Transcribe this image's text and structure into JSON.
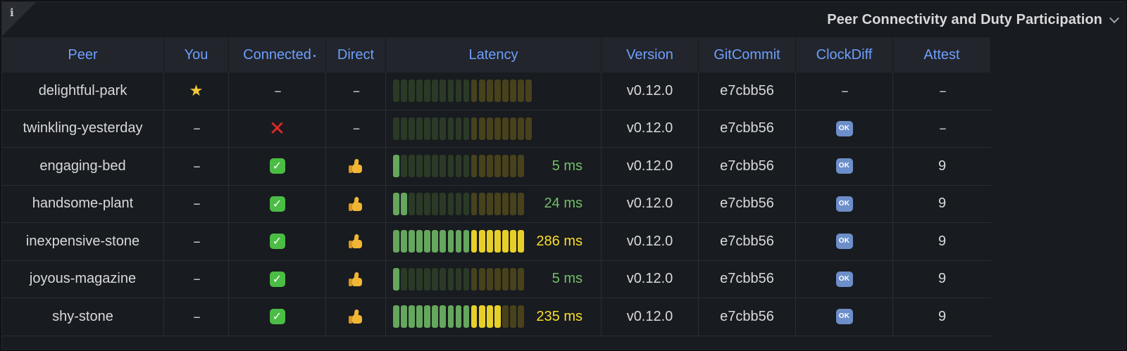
{
  "panel": {
    "title": "Peer Connectivity and Duty Participation",
    "info_glyph": "i"
  },
  "columns": {
    "peer": "Peer",
    "you": "You",
    "connected": "Connected",
    "direct": "Direct",
    "latency": "Latency",
    "version": "Version",
    "gitcommit": "GitCommit",
    "clockdiff": "ClockDiff",
    "attest": "Attest"
  },
  "colors": {
    "header_text": "#6e9fff",
    "latency_green": "#73bf69",
    "latency_yellow": "#fade2a",
    "gauge_green_dim": "#2b3a26",
    "gauge_yellow_dim": "#47421c"
  },
  "gauge_segments": 18,
  "rows": [
    {
      "peer": "delightful-park",
      "you": "star-icon",
      "connected": "--",
      "direct": "--",
      "latency": "",
      "latency_segments_lit": 0,
      "latency_color": "none",
      "gauge_shows_value": false,
      "version": "v0.12.0",
      "gitcommit": "e7cbb56",
      "clockdiff": "--",
      "attest": "--"
    },
    {
      "peer": "twinkling-yesterday",
      "you": "--",
      "connected": "cross-icon",
      "direct": "--",
      "latency": "",
      "latency_segments_lit": 0,
      "latency_color": "none",
      "gauge_shows_value": false,
      "version": "v0.12.0",
      "gitcommit": "e7cbb56",
      "clockdiff": "ok-icon",
      "attest": "--"
    },
    {
      "peer": "engaging-bed",
      "you": "--",
      "connected": "check-icon",
      "direct": "thumbs-up-icon",
      "latency": "5 ms",
      "latency_segments_lit": 1,
      "latency_color": "green",
      "gauge_shows_value": true,
      "version": "v0.12.0",
      "gitcommit": "e7cbb56",
      "clockdiff": "ok-icon",
      "attest": "9"
    },
    {
      "peer": "handsome-plant",
      "you": "--",
      "connected": "check-icon",
      "direct": "thumbs-up-icon",
      "latency": "24 ms",
      "latency_segments_lit": 2,
      "latency_color": "green",
      "gauge_shows_value": true,
      "version": "v0.12.0",
      "gitcommit": "e7cbb56",
      "clockdiff": "ok-icon",
      "attest": "9"
    },
    {
      "peer": "inexpensive-stone",
      "you": "--",
      "connected": "check-icon",
      "direct": "thumbs-up-icon",
      "latency": "286 ms",
      "latency_segments_lit": 17,
      "latency_color": "yellow",
      "gauge_shows_value": true,
      "version": "v0.12.0",
      "gitcommit": "e7cbb56",
      "clockdiff": "ok-icon",
      "attest": "9"
    },
    {
      "peer": "joyous-magazine",
      "you": "--",
      "connected": "check-icon",
      "direct": "thumbs-up-icon",
      "latency": "5 ms",
      "latency_segments_lit": 1,
      "latency_color": "green",
      "gauge_shows_value": true,
      "version": "v0.12.0",
      "gitcommit": "e7cbb56",
      "clockdiff": "ok-icon",
      "attest": "9"
    },
    {
      "peer": "shy-stone",
      "you": "--",
      "connected": "check-icon",
      "direct": "thumbs-up-icon",
      "latency": "235 ms",
      "latency_segments_lit": 14,
      "latency_color": "yellow",
      "gauge_shows_value": true,
      "version": "v0.12.0",
      "gitcommit": "e7cbb56",
      "clockdiff": "ok-icon",
      "attest": "9"
    }
  ]
}
